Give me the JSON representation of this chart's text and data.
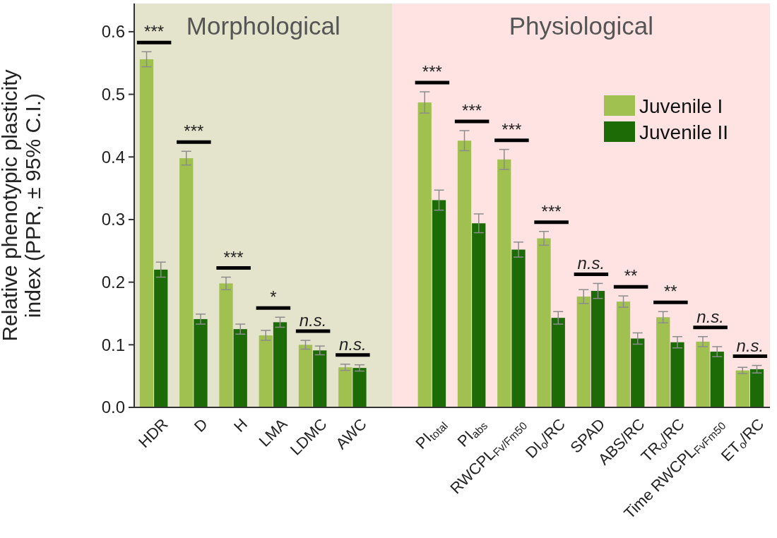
{
  "chart_data": {
    "type": "bar",
    "ylabel": "Relative phenotypic plasticity\nindex (PPR, ± 95% C.I.)",
    "categories": [
      "HDR",
      "D",
      "H",
      "LMA",
      "LDMC",
      "AWC",
      null,
      "PI$_{total}$",
      "PI$_{abs}$",
      "RWCPL$_{Fv/Fm50}$",
      "DI$_{o}$/RC",
      "SPAD",
      "ABS/RC",
      "TR$_{o}$/RC",
      "Time RWCPL$_{FvFm50}$",
      "ET$_{o}$/RC"
    ],
    "series": [
      {
        "name": "Juvenile I",
        "color": "#a0c050",
        "values": [
          0.556,
          0.398,
          0.198,
          0.115,
          0.1,
          0.064,
          null,
          0.487,
          0.426,
          0.396,
          0.27,
          0.177,
          0.169,
          0.144,
          0.105,
          0.059
        ],
        "errors": [
          0.012,
          0.011,
          0.01,
          0.008,
          0.007,
          0.005,
          null,
          0.017,
          0.016,
          0.016,
          0.011,
          0.011,
          0.009,
          0.009,
          0.008,
          0.005
        ]
      },
      {
        "name": "Juvenile II",
        "color": "#1d6b06",
        "values": [
          0.22,
          0.141,
          0.125,
          0.136,
          0.091,
          0.063,
          null,
          0.331,
          0.294,
          0.252,
          0.143,
          0.186,
          0.11,
          0.104,
          0.089,
          0.061
        ],
        "errors": [
          0.012,
          0.008,
          0.008,
          0.008,
          0.007,
          0.005,
          null,
          0.016,
          0.015,
          0.012,
          0.01,
          0.012,
          0.009,
          0.009,
          0.008,
          0.006
        ]
      }
    ],
    "ylim": [
      0,
      0.645
    ],
    "yticks": [
      {
        "value": 0,
        "label": "0.0"
      },
      {
        "value": 0.1,
        "label": "0.1"
      },
      {
        "value": 0.2,
        "label": "0.2"
      },
      {
        "value": 0.3,
        "label": "0.3"
      },
      {
        "value": 0.4,
        "label": "0.4"
      },
      {
        "value": 0.5,
        "label": "0.5"
      },
      {
        "value": 0.6,
        "label": "0.6"
      }
    ],
    "annotations": [
      "Morphological",
      "Physiological",
      "***",
      "***",
      "***",
      "*",
      "n.s.",
      "n.s.",
      "***",
      "***",
      "***",
      "***",
      "n.s.",
      "**",
      "**",
      "n.s.",
      "n.s."
    ],
    "legend": "top right",
    "grid": false
  }
}
